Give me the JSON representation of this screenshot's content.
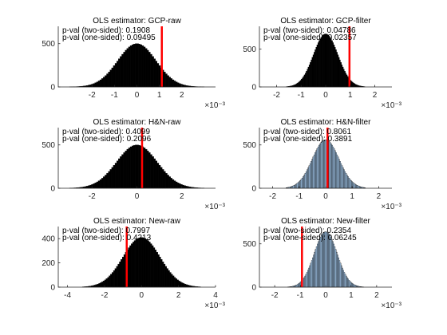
{
  "chart_data": [
    {
      "type": "bar",
      "title": "OLS estimator: GCP-raw",
      "annotations": [
        "p-val (two-sided): 0.1908",
        "p-val (one-sided): 0.09495"
      ],
      "xlim": [
        -0.0035,
        0.0035
      ],
      "ylim": [
        0,
        700
      ],
      "xticks": [
        -0.002,
        -0.001,
        0,
        0.001,
        0.002
      ],
      "xticklabels": [
        "-2",
        "-1",
        "0",
        "1",
        "2"
      ],
      "yticks": [
        0,
        500
      ],
      "yticklabels": [
        "0",
        "500"
      ],
      "exponent_label": "×10⁻³",
      "bin_range": [
        -0.003,
        0.003
      ],
      "mean": 0,
      "sd": 0.00085,
      "peak": 500,
      "bar_fill": "#000000",
      "observed_x": 0.00111,
      "observed_line_color": "#ff0000"
    },
    {
      "type": "bar",
      "title": "OLS estimator: GCP-filter",
      "annotations": [
        "p-val (two-sided): 0.04786",
        "p-val (one-sided): 0.02357"
      ],
      "xlim": [
        -0.0027,
        0.0027
      ],
      "ylim": [
        0,
        800
      ],
      "xticks": [
        -0.002,
        -0.001,
        0,
        0.001,
        0.002
      ],
      "xticklabels": [
        "-2",
        "-1",
        "0",
        "1",
        "2"
      ],
      "yticks": [
        0,
        500
      ],
      "yticklabels": [
        "0",
        "500"
      ],
      "exponent_label": "×10⁻³",
      "bin_range": [
        -0.0016,
        0.0016
      ],
      "mean": 0,
      "sd": 0.0005,
      "peak": 700,
      "bar_fill": "#000000",
      "observed_x": 0.00097,
      "observed_line_color": "#ff0000"
    },
    {
      "type": "bar",
      "title": "OLS estimator: H&N-raw",
      "annotations": [
        "p-val (two-sided): 0.4099",
        "p-val (one-sided): 0.2096"
      ],
      "xlim": [
        -0.0035,
        0.0035
      ],
      "ylim": [
        0,
        700
      ],
      "xticks": [
        -0.002,
        0,
        0.002
      ],
      "xticklabels": [
        "-2",
        "0",
        "2"
      ],
      "yticks": [
        0,
        500
      ],
      "yticklabels": [
        "0",
        "500"
      ],
      "exponent_label": "×10⁻³",
      "bin_range": [
        -0.003,
        0.003
      ],
      "mean": 0,
      "sd": 0.0009,
      "peak": 500,
      "bar_fill": "#000000",
      "observed_x": 0.00023,
      "observed_line_color": "#ff0000"
    },
    {
      "type": "bar",
      "title": "OLS estimator: H&N-filter",
      "annotations": [
        "p-val (two-sided): 0.8061",
        "p-val (one-sided): 0.3891"
      ],
      "xlim": [
        -0.0025,
        0.0025
      ],
      "ylim": [
        0,
        700
      ],
      "xticks": [
        -0.002,
        -0.001,
        0,
        0.001,
        0.002
      ],
      "xticklabels": [
        "-2",
        "-1",
        "0",
        "1",
        "2"
      ],
      "yticks": [
        0,
        500
      ],
      "yticklabels": [
        "0",
        "500"
      ],
      "exponent_label": "×10⁻³",
      "bin_range": [
        -0.0015,
        0.0015
      ],
      "mean": 0,
      "sd": 0.0005,
      "peak": 560,
      "bar_fill": "#9fc3e6",
      "observed_x": 7e-05,
      "observed_line_color": "#ff0000"
    },
    {
      "type": "bar",
      "title": "OLS estimator: New-raw",
      "annotations": [
        "p-val (two-sided): 0.7997",
        "p-val (one-sided): 0.4213"
      ],
      "xlim": [
        -0.0045,
        0.004
      ],
      "ylim": [
        0,
        500
      ],
      "xticks": [
        -0.004,
        -0.002,
        0,
        0.002,
        0.004
      ],
      "xticklabels": [
        "-4",
        "-2",
        "0",
        "2",
        "4"
      ],
      "yticks": [
        0,
        200,
        400
      ],
      "yticklabels": [
        "0",
        "200",
        "400"
      ],
      "exponent_label": "×10⁻³",
      "bin_range": [
        -0.0032,
        0.0032
      ],
      "mean": 0,
      "sd": 0.001,
      "peak": 410,
      "bar_fill": "#000000",
      "observed_x": -0.0008,
      "observed_line_color": "#ff0000"
    },
    {
      "type": "bar",
      "title": "OLS estimator: New-filter",
      "annotations": [
        "p-val (two-sided): 0.2354",
        "p-val (one-sided): 0.06245"
      ],
      "xlim": [
        -0.0026,
        0.0026
      ],
      "ylim": [
        0,
        700
      ],
      "xticks": [
        -0.002,
        -0.001,
        0,
        0.001,
        0.002
      ],
      "xticklabels": [
        "-2",
        "-1",
        "0",
        "1",
        "2"
      ],
      "yticks": [
        0,
        500
      ],
      "yticklabels": [
        "0",
        "500"
      ],
      "exponent_label": "×10⁻³",
      "bin_range": [
        -0.0015,
        0.0015
      ],
      "mean": 0,
      "sd": 0.00045,
      "peak": 640,
      "bar_fill": "#9fc3e6",
      "observed_x": -0.00093,
      "observed_line_color": "#ff0000"
    }
  ]
}
